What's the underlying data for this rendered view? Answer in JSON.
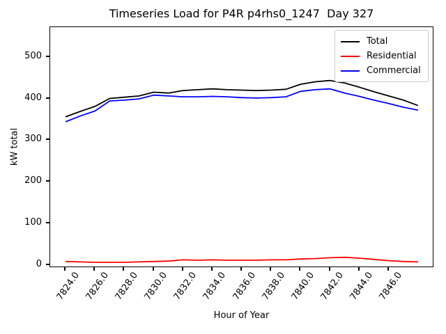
{
  "chart_data": {
    "type": "line",
    "title": "Timeseries Load for P4R p4rhs0_1247  Day 327",
    "xlabel": "Hour of Year",
    "ylabel": "kW total",
    "grid": false,
    "legend_position": "upper right",
    "xlim": [
      7822.95,
      7849.0
    ],
    "ylim": [
      -3,
      571
    ],
    "x_tick_values": [
      7824,
      7826,
      7828,
      7830,
      7832,
      7834,
      7836,
      7838,
      7840,
      7842,
      7844,
      7846
    ],
    "x_tick_labels": [
      "7824.0",
      "7826.0",
      "7828.0",
      "7830.0",
      "7832.0",
      "7834.0",
      "7836.0",
      "7838.0",
      "7840.0",
      "7842.0",
      "7844.0",
      "7846.0"
    ],
    "y_tick_values": [
      0,
      100,
      200,
      300,
      400,
      500
    ],
    "y_tick_labels": [
      "0",
      "100",
      "200",
      "300",
      "400",
      "500"
    ],
    "x": [
      7824,
      7825,
      7826,
      7827,
      7828,
      7829,
      7830,
      7831,
      7832,
      7833,
      7834,
      7835,
      7836,
      7837,
      7838,
      7839,
      7840,
      7841,
      7842,
      7843,
      7844,
      7845,
      7846,
      7847,
      7848
    ],
    "series": [
      {
        "name": "Total",
        "color": "#000000",
        "values": [
          356,
          369,
          381,
          400,
          403,
          406,
          415,
          413,
          419,
          421,
          423,
          421,
          420,
          419,
          420,
          422,
          434,
          440,
          443,
          437,
          427,
          416,
          406,
          396,
          383
        ]
      },
      {
        "name": "Residential",
        "color": "#ff0000",
        "values": [
          9,
          8,
          7,
          7,
          7,
          8,
          9,
          10,
          13,
          12,
          13,
          12,
          12,
          12,
          13,
          13,
          15,
          16,
          18,
          19,
          17,
          14,
          11,
          9,
          8
        ]
      },
      {
        "name": "Commercial",
        "color": "#0000ff",
        "values": [
          344,
          358,
          370,
          394,
          396,
          399,
          408,
          406,
          404,
          404,
          405,
          404,
          402,
          401,
          402,
          404,
          417,
          421,
          423,
          413,
          405,
          396,
          388,
          379,
          372
        ]
      }
    ]
  }
}
